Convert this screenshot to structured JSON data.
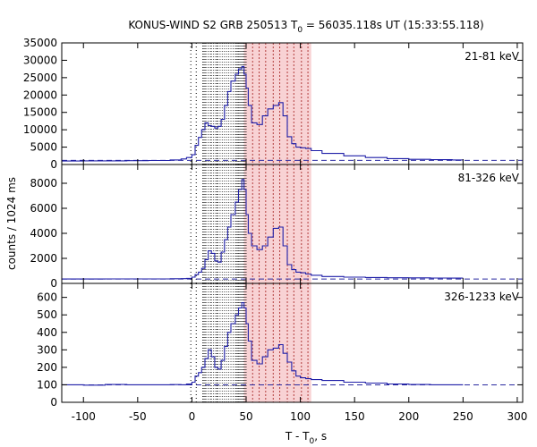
{
  "chart_data": {
    "type": "line",
    "title": {
      "main": "KONUS-WIND S2 GRB 250513 T",
      "sub": "0",
      "rest": " = 56035.118s UT (15:33:55.118)"
    },
    "xlabel": {
      "main": "T - T",
      "sub": "0",
      "rest": ", s"
    },
    "ylabel": "counts / 1024 ms",
    "xlim": [
      -120,
      305
    ],
    "xticks": [
      -100,
      -50,
      0,
      50,
      100,
      150,
      200,
      250,
      300
    ],
    "grid": false,
    "colors": {
      "light_curve": "#1f1fa8",
      "background_level": "#2a2aa0",
      "interval_shade": "#f8d2d4",
      "marker_line": "#000000",
      "interval_line": "#a01818"
    },
    "markers": {
      "trigger_lines": [
        -1,
        4
      ],
      "black_dotted_lines": [
        10,
        11,
        12,
        13,
        15,
        17,
        18,
        20,
        22,
        23,
        24,
        26,
        28,
        30,
        32,
        34,
        36,
        38,
        40,
        41,
        42,
        43,
        44,
        45,
        46,
        47,
        48,
        49,
        50
      ],
      "red_dotted_lines": [
        56,
        62,
        68,
        75,
        81,
        88,
        94,
        101,
        107
      ],
      "shaded_interval": [
        48,
        110
      ]
    },
    "panels": [
      {
        "label": "21-81 keV",
        "ylim": [
          0,
          35000
        ],
        "yticks": [
          0,
          5000,
          10000,
          15000,
          20000,
          25000,
          30000,
          35000
        ],
        "background": 1200,
        "series": {
          "x": [
            -120,
            -100,
            -80,
            -60,
            -40,
            -20,
            -10,
            -5,
            0,
            3,
            6,
            9,
            12,
            15,
            18,
            21,
            24,
            27,
            30,
            33,
            36,
            40,
            43,
            46,
            48,
            50,
            52,
            55,
            60,
            65,
            70,
            75,
            80,
            84,
            88,
            92,
            96,
            100,
            105,
            110,
            120,
            140,
            160,
            180,
            200,
            220,
            240,
            250
          ],
          "y": [
            1000,
            1050,
            1050,
            1100,
            1150,
            1300,
            1600,
            2000,
            2800,
            5500,
            7800,
            10000,
            12000,
            11200,
            11000,
            10500,
            11000,
            13000,
            17000,
            21000,
            24000,
            26000,
            27500,
            28200,
            26000,
            22000,
            17000,
            12000,
            11500,
            14000,
            16000,
            17000,
            17800,
            14000,
            8000,
            6000,
            5000,
            4800,
            4600,
            4000,
            3200,
            2500,
            2000,
            1700,
            1500,
            1400,
            1300,
            1250
          ]
        }
      },
      {
        "label": "81-326 keV",
        "ylim": [
          0,
          9500
        ],
        "yticks": [
          0,
          2000,
          4000,
          6000,
          8000
        ],
        "background": 350,
        "series": {
          "x": [
            -120,
            -100,
            -80,
            -60,
            -40,
            -20,
            -10,
            -5,
            0,
            3,
            6,
            9,
            12,
            15,
            18,
            21,
            24,
            27,
            30,
            33,
            36,
            40,
            43,
            46,
            48,
            50,
            52,
            55,
            60,
            65,
            70,
            75,
            80,
            84,
            88,
            92,
            96,
            100,
            105,
            110,
            120,
            140,
            160,
            180,
            200,
            220,
            240,
            250
          ],
          "y": [
            350,
            350,
            360,
            360,
            360,
            370,
            380,
            400,
            500,
            700,
            900,
            1200,
            1900,
            2600,
            2400,
            1800,
            1700,
            2500,
            3500,
            4500,
            5500,
            6500,
            7500,
            8300,
            7500,
            5500,
            4000,
            3000,
            2700,
            3000,
            3700,
            4400,
            4500,
            3000,
            1500,
            1100,
            900,
            850,
            750,
            650,
            550,
            500,
            470,
            450,
            440,
            430,
            420,
            420
          ]
        }
      },
      {
        "label": "326-1233 keV",
        "ylim": [
          0,
          680
        ],
        "yticks": [
          0,
          100,
          200,
          300,
          400,
          500,
          600
        ],
        "background": 100,
        "series": {
          "x": [
            -120,
            -100,
            -80,
            -60,
            -40,
            -20,
            -10,
            -5,
            0,
            3,
            6,
            9,
            12,
            15,
            18,
            21,
            24,
            27,
            30,
            33,
            36,
            40,
            43,
            46,
            48,
            50,
            52,
            55,
            60,
            65,
            70,
            75,
            80,
            84,
            88,
            92,
            96,
            100,
            105,
            110,
            120,
            140,
            160,
            180,
            200,
            220,
            240,
            250
          ],
          "y": [
            100,
            98,
            102,
            100,
            100,
            101,
            100,
            105,
            115,
            150,
            170,
            200,
            250,
            300,
            260,
            200,
            190,
            240,
            320,
            400,
            450,
            500,
            540,
            570,
            540,
            450,
            350,
            240,
            220,
            260,
            300,
            310,
            330,
            280,
            230,
            180,
            150,
            140,
            135,
            130,
            125,
            115,
            110,
            105,
            102,
            100,
            100,
            100
          ]
        }
      }
    ]
  }
}
